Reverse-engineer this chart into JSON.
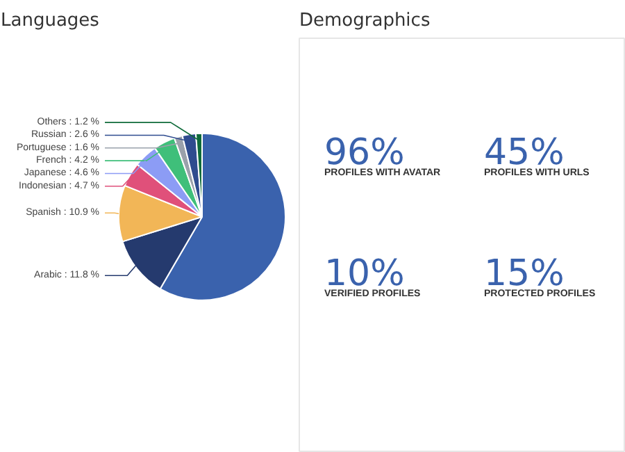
{
  "chart_data": [
    {
      "type": "pie",
      "title": "Languages",
      "categories": [
        null,
        "Arabic",
        "Spanish",
        "Indonesian",
        "Japanese",
        "French",
        "Portuguese",
        "Russian",
        "Others"
      ],
      "values": [
        58.4,
        11.8,
        10.9,
        4.7,
        4.6,
        4.2,
        1.6,
        2.6,
        1.2
      ],
      "colors": [
        "#3a62ad",
        "#253a6e",
        "#f2b657",
        "#e0507a",
        "#8c9cf5",
        "#3fbf7a",
        "#9aa1ab",
        "#2f4c8f",
        "#0f6b3a"
      ],
      "value_labels": [
        null,
        "11.8 %",
        "10.9 %",
        "4.7 %",
        "4.6 %",
        "4.2 %",
        "1.6 %",
        "2.6 %",
        "1.2 %"
      ]
    },
    {
      "type": "other",
      "title": "Demographics",
      "categories": [
        "PROFILES WITH AVATAR",
        "PROFILES WITH URLS",
        "VERIFIED PROFILES",
        "PROTECTED PROFILES"
      ],
      "values": [
        96,
        45,
        10,
        15
      ],
      "value_labels": [
        "96%",
        "45%",
        "10%",
        "15%"
      ],
      "color": "#3a62ad"
    }
  ]
}
